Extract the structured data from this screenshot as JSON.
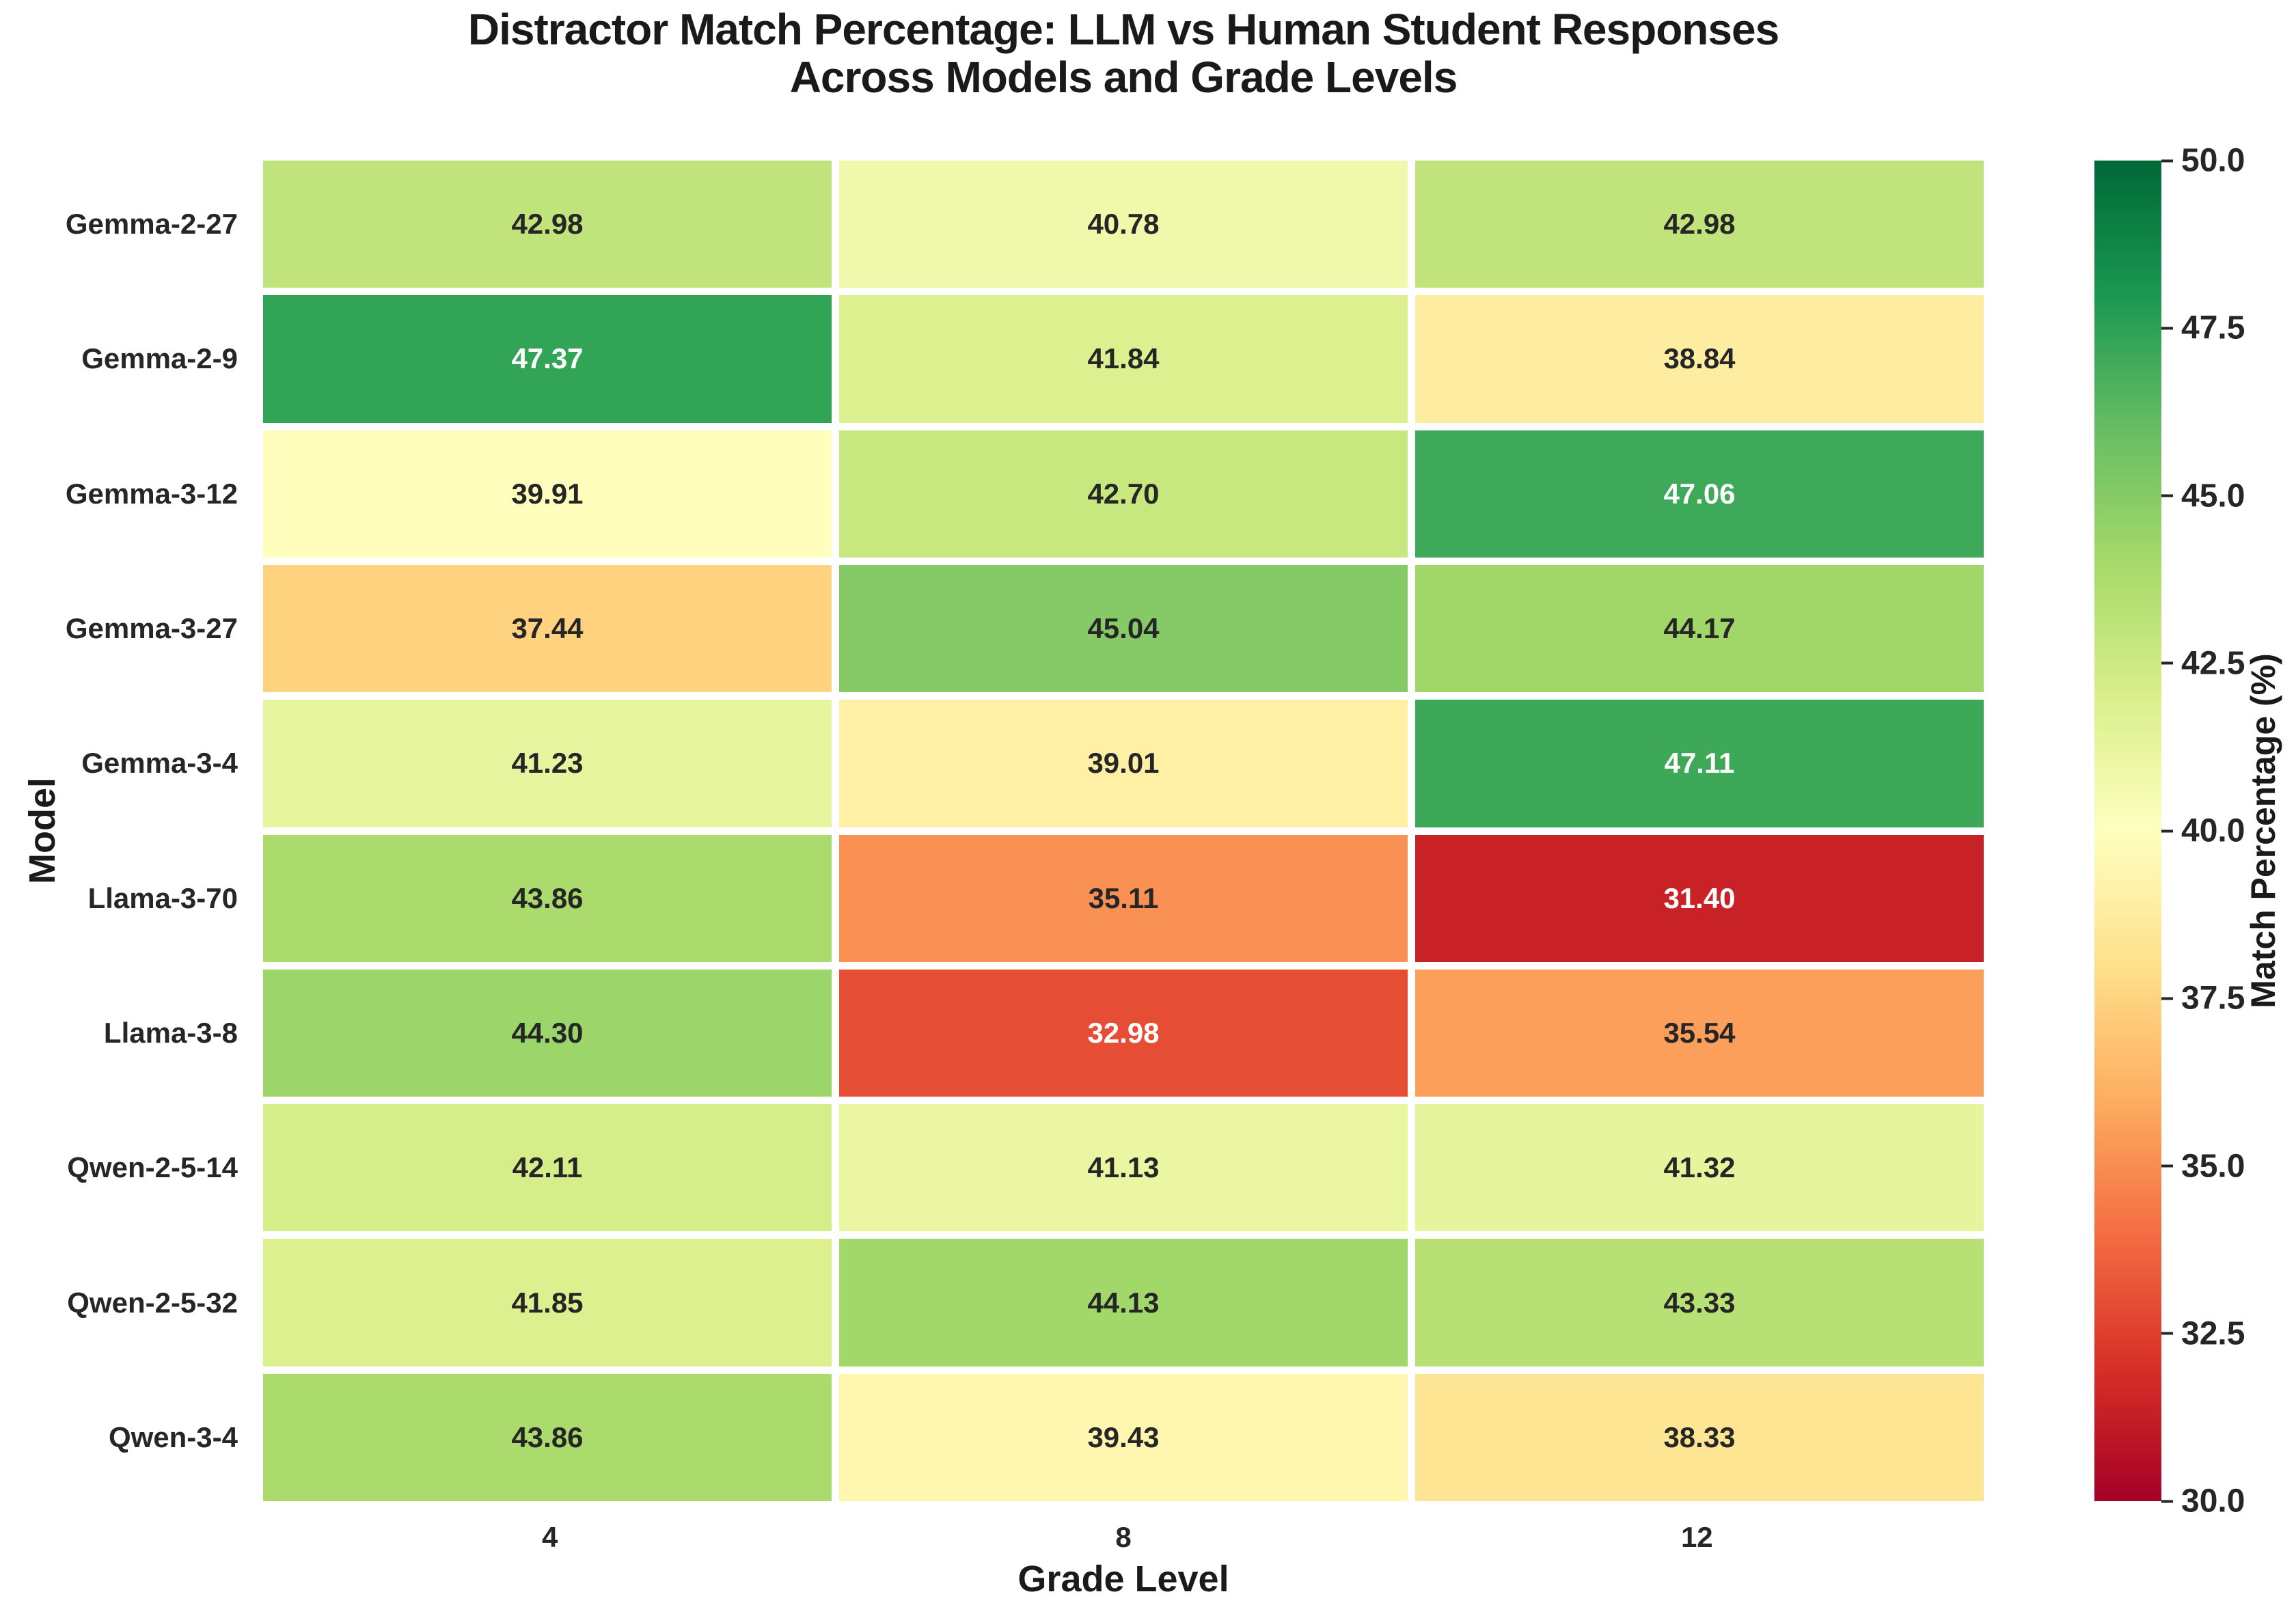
{
  "chart_data": {
    "type": "heatmap",
    "title": "Distractor Match Percentage: LLM vs Human Student Responses\nAcross Models and Grade Levels",
    "xlabel": "Grade Level",
    "ylabel": "Model",
    "x_categories": [
      "4",
      "8",
      "12"
    ],
    "y_categories": [
      "Gemma-2-27",
      "Gemma-2-9",
      "Gemma-3-12",
      "Gemma-3-27",
      "Gemma-3-4",
      "Llama-3-70",
      "Llama-3-8",
      "Qwen-2-5-14",
      "Qwen-2-5-32",
      "Qwen-3-4"
    ],
    "values": [
      [
        42.98,
        40.78,
        42.98
      ],
      [
        47.37,
        41.84,
        38.84
      ],
      [
        39.91,
        42.7,
        47.06
      ],
      [
        37.44,
        45.04,
        44.17
      ],
      [
        41.23,
        39.01,
        47.11
      ],
      [
        43.86,
        35.11,
        31.4
      ],
      [
        44.3,
        32.98,
        35.54
      ],
      [
        42.11,
        41.13,
        41.32
      ],
      [
        41.85,
        44.13,
        43.33
      ],
      [
        43.86,
        39.43,
        38.33
      ]
    ],
    "value_format_decimals": 2,
    "vmin": 30.0,
    "vmax": 50.0,
    "colormap": "RdYlGn",
    "colormap_stops": [
      "#a50026",
      "#d73027",
      "#f46d43",
      "#fdae61",
      "#fee08b",
      "#ffffbf",
      "#d9ef8b",
      "#a6d96a",
      "#66bd63",
      "#1a9850",
      "#006837"
    ],
    "grid_line_color": "#ffffff",
    "legend_position": "right",
    "colorbar": {
      "label": "Match Percentage (%)",
      "ticks": [
        "50.0",
        "47.5",
        "45.0",
        "42.5",
        "40.0",
        "37.5",
        "35.0",
        "32.5",
        "30.0"
      ]
    },
    "colors": {
      "annotation_dark": "#262626",
      "annotation_light": "#ffffff",
      "axis_text": "#1a1a1a",
      "background": "#ffffff"
    }
  }
}
